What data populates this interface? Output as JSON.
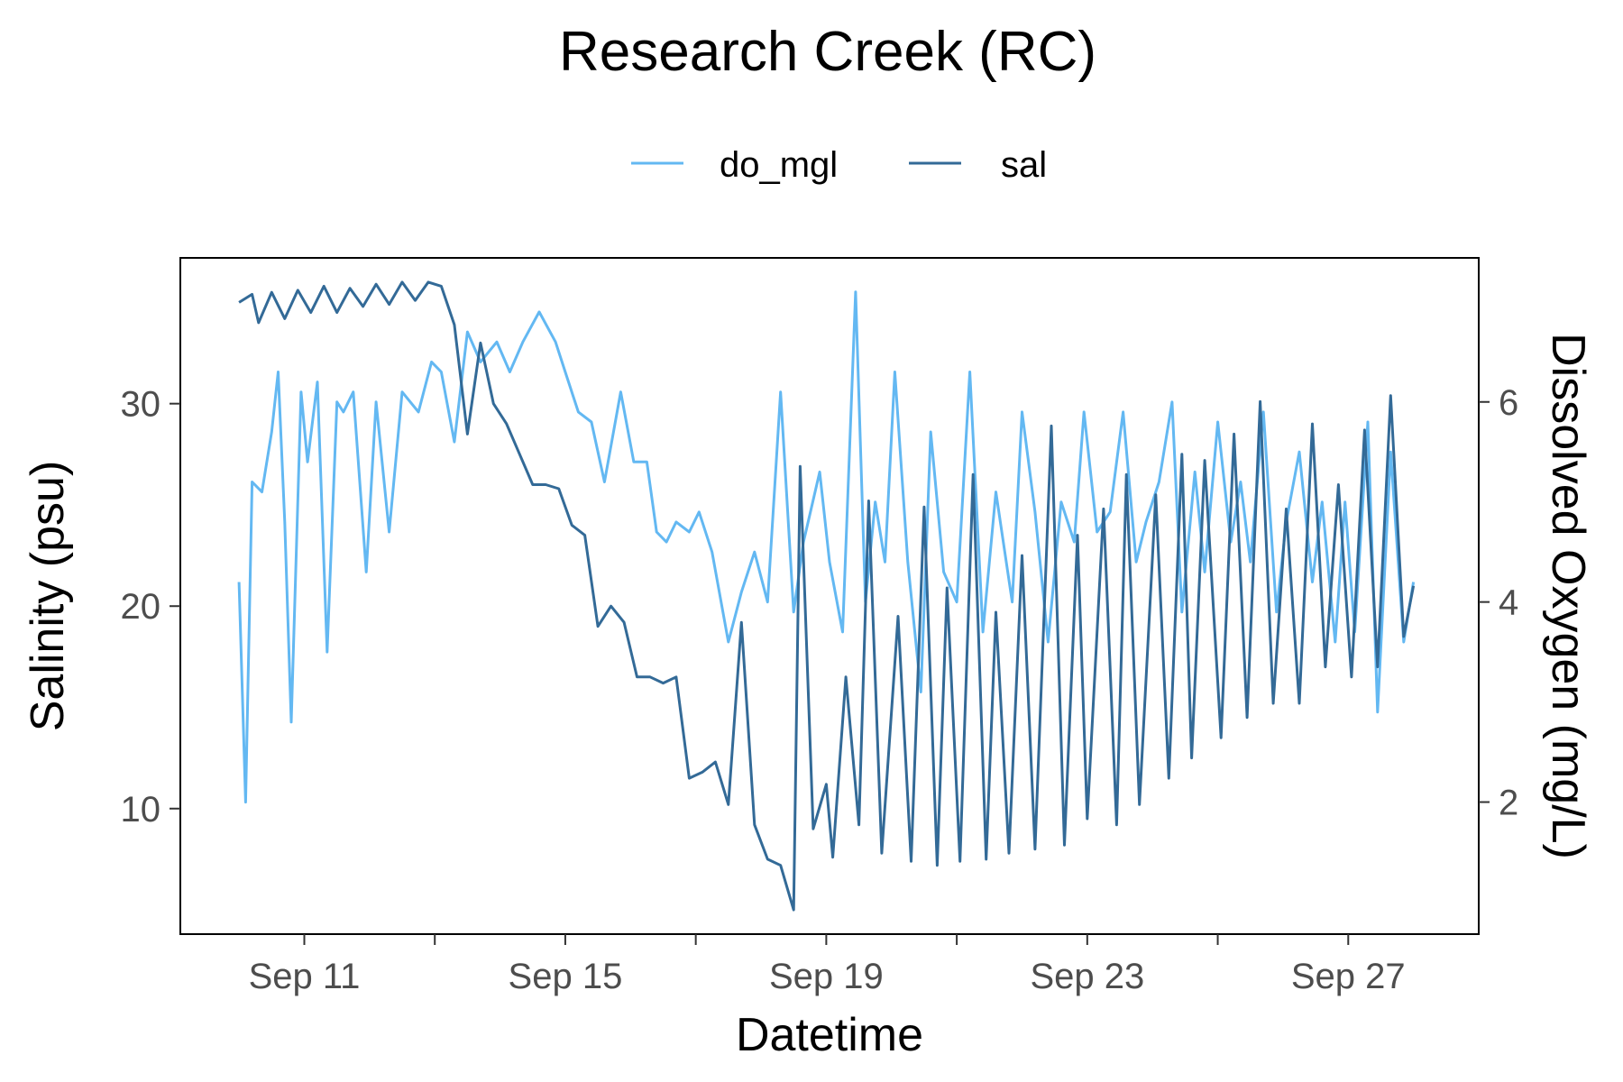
{
  "chart_data": {
    "type": "line",
    "title": "Research Creek (RC)",
    "xlabel": "Datetime",
    "ylabel_left": "Salinity (psu)",
    "ylabel_right": "Dissolved Oxygen (mg/L)",
    "x_tick_labels": [
      "Sep 11",
      "Sep 15",
      "Sep 19",
      "Sep 23",
      "Sep 27"
    ],
    "x_tick_days": [
      11,
      15,
      19,
      23,
      27
    ],
    "x_minor_tick_days": [
      13,
      17,
      21,
      25
    ],
    "xlim_days": [
      9.1,
      29.0
    ],
    "y_left_ticks": [
      10,
      20,
      30
    ],
    "y_left_tick_labels": [
      "10",
      "20",
      "30"
    ],
    "y_left_lim": [
      3.8,
      37.2
    ],
    "y_right_ticks": [
      2,
      4,
      6
    ],
    "y_right_tick_labels": [
      "2",
      "4",
      "6"
    ],
    "y_right_lim": [
      0.68,
      7.44
    ],
    "grid": false,
    "legend_position": "top",
    "legend": [
      {
        "label": "do_mgl",
        "color": "#63b8f2"
      },
      {
        "label": "sal",
        "color": "#336a97"
      }
    ],
    "series": [
      {
        "name": "do_mgl",
        "axis": "right",
        "color": "#63b8f2",
        "x_day": [
          10.0,
          10.1,
          10.2,
          10.35,
          10.5,
          10.6,
          10.7,
          10.8,
          10.95,
          11.05,
          11.2,
          11.35,
          11.5,
          11.6,
          11.75,
          11.95,
          12.1,
          12.3,
          12.5,
          12.75,
          12.95,
          13.1,
          13.3,
          13.5,
          13.7,
          13.95,
          14.15,
          14.35,
          14.6,
          14.85,
          15.0,
          15.2,
          15.4,
          15.6,
          15.85,
          16.05,
          16.25,
          16.4,
          16.55,
          16.7,
          16.9,
          17.05,
          17.25,
          17.5,
          17.7,
          17.9,
          18.1,
          18.3,
          18.5,
          18.65,
          18.9,
          19.05,
          19.25,
          19.45,
          19.6,
          19.75,
          19.9,
          20.05,
          20.25,
          20.45,
          20.6,
          20.8,
          21.0,
          21.2,
          21.4,
          21.6,
          21.85,
          22.0,
          22.2,
          22.4,
          22.6,
          22.8,
          22.95,
          23.15,
          23.35,
          23.55,
          23.75,
          23.9,
          24.1,
          24.3,
          24.45,
          24.65,
          24.8,
          25.0,
          25.2,
          25.35,
          25.5,
          25.7,
          25.9,
          26.05,
          26.25,
          26.45,
          26.6,
          26.8,
          26.95,
          27.1,
          27.3,
          27.45,
          27.65,
          27.85,
          28.0
        ],
        "values": [
          4.2,
          2.0,
          5.2,
          5.1,
          5.7,
          6.3,
          4.8,
          2.8,
          6.1,
          5.4,
          6.2,
          3.5,
          6.0,
          5.9,
          6.1,
          4.3,
          6.0,
          4.7,
          6.1,
          5.9,
          6.4,
          6.3,
          5.6,
          6.7,
          6.4,
          6.6,
          6.3,
          6.6,
          6.9,
          6.6,
          6.3,
          5.9,
          5.8,
          5.2,
          6.1,
          5.4,
          5.4,
          4.7,
          4.6,
          4.8,
          4.7,
          4.9,
          4.5,
          3.6,
          4.1,
          4.5,
          4.0,
          6.1,
          3.9,
          4.6,
          5.3,
          4.4,
          3.7,
          7.1,
          4.0,
          5.0,
          4.4,
          6.3,
          4.4,
          3.1,
          5.7,
          4.3,
          4.0,
          6.3,
          3.7,
          5.1,
          4.0,
          5.9,
          4.9,
          3.6,
          5.0,
          4.6,
          5.9,
          4.7,
          4.9,
          5.9,
          4.4,
          4.8,
          5.2,
          6.0,
          3.9,
          5.3,
          4.3,
          5.8,
          4.6,
          5.2,
          4.4,
          5.9,
          3.9,
          4.8,
          5.5,
          4.2,
          5.0,
          3.6,
          5.0,
          3.7,
          5.8,
          2.9,
          5.5,
          3.6,
          4.2
        ]
      },
      {
        "name": "sal",
        "axis": "left",
        "color": "#336a97",
        "x_day": [
          10.0,
          10.2,
          10.3,
          10.5,
          10.7,
          10.9,
          11.1,
          11.3,
          11.5,
          11.7,
          11.9,
          12.1,
          12.3,
          12.5,
          12.7,
          12.9,
          13.1,
          13.3,
          13.5,
          13.7,
          13.9,
          14.1,
          14.3,
          14.5,
          14.7,
          14.9,
          15.1,
          15.3,
          15.5,
          15.7,
          15.9,
          16.1,
          16.3,
          16.5,
          16.7,
          16.9,
          17.1,
          17.3,
          17.5,
          17.7,
          17.9,
          18.1,
          18.3,
          18.5,
          18.6,
          18.8,
          19.0,
          19.1,
          19.3,
          19.5,
          19.65,
          19.85,
          20.1,
          20.3,
          20.5,
          20.7,
          20.85,
          21.05,
          21.25,
          21.45,
          21.6,
          21.8,
          22.0,
          22.2,
          22.45,
          22.65,
          22.85,
          23.0,
          23.25,
          23.45,
          23.6,
          23.8,
          24.05,
          24.25,
          24.45,
          24.6,
          24.8,
          25.05,
          25.25,
          25.45,
          25.65,
          25.85,
          26.05,
          26.25,
          26.45,
          26.65,
          26.85,
          27.05,
          27.25,
          27.45,
          27.65,
          27.85,
          28.0
        ],
        "values": [
          35,
          35.4,
          34,
          35.5,
          34.2,
          35.6,
          34.5,
          35.8,
          34.5,
          35.7,
          34.8,
          35.9,
          34.9,
          36,
          35.1,
          36,
          35.8,
          33.9,
          28.5,
          33,
          30,
          29,
          27.5,
          26,
          26,
          25.8,
          24,
          23.5,
          19,
          20,
          19.2,
          16.5,
          16.5,
          16.2,
          16.5,
          11.5,
          11.8,
          12.3,
          10.2,
          19.2,
          9.2,
          7.5,
          7.2,
          5.0,
          26.9,
          9.0,
          11.2,
          7.6,
          16.5,
          9.2,
          25.2,
          7.8,
          19.5,
          7.4,
          24.9,
          7.2,
          20.9,
          7.4,
          26.5,
          7.5,
          19.7,
          7.8,
          22.5,
          8.0,
          28.9,
          8.2,
          23.5,
          9.5,
          24.8,
          9.2,
          26.5,
          10.2,
          25.5,
          11.5,
          27.5,
          12.5,
          27.2,
          13.5,
          28.5,
          14.5,
          30.1,
          15.2,
          24.8,
          15.2,
          29.0,
          17.0,
          26.0,
          16.5,
          28.7,
          17.0,
          30.4,
          18.5,
          21.0
        ]
      }
    ]
  }
}
